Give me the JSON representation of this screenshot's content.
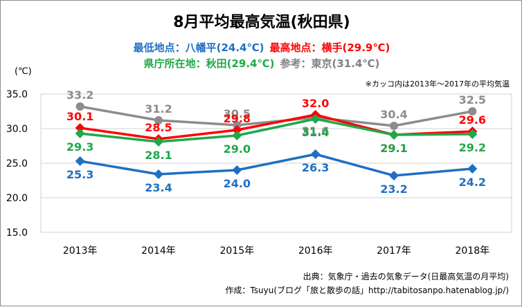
{
  "chart_data": {
    "type": "line",
    "title": "8月平均最高気温(秋田県)",
    "subtitle_lines": [
      [
        {
          "text": "最低地点：八幡平(24.4℃)",
          "color": "#1f6fc4"
        },
        {
          "text": "最高地点：横手(29.9℃)",
          "color": "#ff0000"
        }
      ],
      [
        {
          "text": "県庁所在地：秋田(29.4℃)",
          "color": "#1fa84a"
        },
        {
          "text": "参考：東京(31.4℃)",
          "color": "#808080"
        }
      ]
    ],
    "ylabel": "(℃)",
    "ylim": [
      15.0,
      35.0
    ],
    "yticks": [
      "15.0",
      "20.0",
      "25.0",
      "30.0",
      "35.0"
    ],
    "categories": [
      "2013年",
      "2014年",
      "2015年",
      "2016年",
      "2017年",
      "2018年"
    ],
    "grid": true,
    "annotation": "※カッコ内は2013年～2017年の平均気温",
    "series": [
      {
        "key": "tokyo",
        "color": "#8c8c8c",
        "marker": "circle",
        "label_pos": [
          "above",
          "above",
          "above",
          "below",
          "above",
          "above"
        ],
        "values": [
          33.2,
          31.2,
          30.5,
          31.6,
          30.4,
          32.5
        ],
        "labels": [
          "33.2",
          "31.2",
          "30.5",
          "31.6",
          "30.4",
          "32.5"
        ]
      },
      {
        "key": "yokote",
        "color": "#ff0000",
        "marker": "diamond",
        "label_pos": [
          "above",
          "above",
          "above",
          "above",
          "below",
          "above"
        ],
        "values": [
          30.1,
          28.5,
          29.8,
          32.0,
          29.1,
          29.6
        ],
        "labels": [
          "30.1",
          "28.5",
          "29.8",
          "32.0",
          "29.1",
          "29.6"
        ]
      },
      {
        "key": "akita",
        "color": "#1fa84a",
        "marker": "diamond",
        "label_pos": [
          "below",
          "below",
          "below",
          "below",
          "below",
          "below"
        ],
        "values": [
          29.3,
          28.1,
          29.0,
          31.4,
          29.1,
          29.2
        ],
        "labels": [
          "29.3",
          "28.1",
          "29.0",
          "31.4",
          "29.1",
          "29.2"
        ]
      },
      {
        "key": "hachimantai",
        "color": "#1f6fc4",
        "marker": "diamond",
        "label_pos": [
          "below",
          "below",
          "below",
          "below",
          "below",
          "below"
        ],
        "values": [
          25.3,
          23.4,
          24.0,
          26.3,
          23.2,
          24.2
        ],
        "labels": [
          "25.3",
          "23.4",
          "24.0",
          "26.3",
          "23.2",
          "24.2"
        ]
      }
    ]
  },
  "source": {
    "line1": "出典：気象庁・過去の気象データ(日最高気温の月平均)",
    "line2": "作成：Tsuyu(ブログ「旅と散歩の話」http://tabitosanpo.hatenablog.jp/)"
  }
}
